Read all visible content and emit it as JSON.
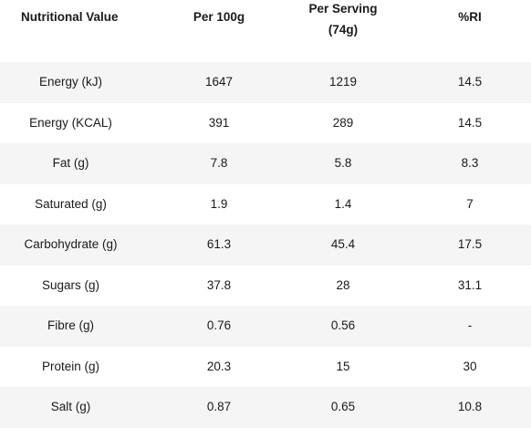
{
  "headers": {
    "nutrient": "Nutritional Value",
    "per100": "Per 100g",
    "serving_line1": "Per Serving",
    "serving_line2": "(74g)",
    "ri": "%RI"
  },
  "rows": [
    {
      "nutrient": "Energy (kJ)",
      "per100": "1647",
      "serving": "1219",
      "ri": "14.5"
    },
    {
      "nutrient": "Energy (KCAL)",
      "per100": "391",
      "serving": "289",
      "ri": "14.5"
    },
    {
      "nutrient": "Fat (g)",
      "per100": "7.8",
      "serving": "5.8",
      "ri": "8.3"
    },
    {
      "nutrient": "Saturated (g)",
      "per100": "1.9",
      "serving": "1.4",
      "ri": "7"
    },
    {
      "nutrient": "Carbohydrate (g)",
      "per100": "61.3",
      "serving": "45.4",
      "ri": "17.5"
    },
    {
      "nutrient": "Sugars (g)",
      "per100": "37.8",
      "serving": "28",
      "ri": "31.1"
    },
    {
      "nutrient": "Fibre (g)",
      "per100": "0.76",
      "serving": "0.56",
      "ri": "-"
    },
    {
      "nutrient": "Protein (g)",
      "per100": "20.3",
      "serving": "15",
      "ri": "30"
    },
    {
      "nutrient": "Salt (g)",
      "per100": "0.87",
      "serving": "0.65",
      "ri": "10.8"
    }
  ],
  "colors": {
    "shaded_row": "#f5f5f5",
    "plain_row": "#ffffff",
    "text": "#1a1a1a"
  }
}
